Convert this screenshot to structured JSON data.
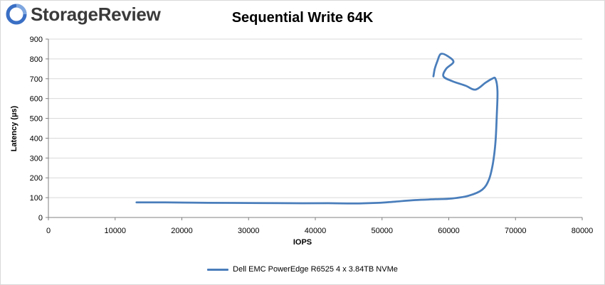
{
  "brand": {
    "name": "StorageReview"
  },
  "colors": {
    "series": "#4a7ebb",
    "grid": "#d9d9d9",
    "axis": "#808080",
    "logo_icon": "#3a6fc4"
  },
  "chart_data": {
    "type": "line",
    "title": "Sequential Write 64K",
    "xlabel": "IOPS",
    "ylabel": "Latency (µs)",
    "xlim": [
      0,
      80000
    ],
    "ylim": [
      0,
      900
    ],
    "x_ticks": [
      "0",
      "10000",
      "20000",
      "30000",
      "40000",
      "50000",
      "60000",
      "70000",
      "80000"
    ],
    "y_ticks": [
      "0",
      "100",
      "200",
      "300",
      "400",
      "500",
      "600",
      "700",
      "800",
      "900"
    ],
    "grid": "horizontal",
    "legend_position": "bottom",
    "series": [
      {
        "name": "Dell EMC PowerEdge R6525 4 x 3.84TB NVMe",
        "points": [
          [
            13200,
            76
          ],
          [
            17500,
            76
          ],
          [
            24000,
            74
          ],
          [
            30000,
            73
          ],
          [
            36000,
            72
          ],
          [
            42000,
            72
          ],
          [
            46000,
            71
          ],
          [
            49500,
            74
          ],
          [
            52000,
            80
          ],
          [
            55000,
            88
          ],
          [
            58000,
            92
          ],
          [
            60500,
            96
          ],
          [
            63000,
            110
          ],
          [
            65000,
            140
          ],
          [
            66000,
            190
          ],
          [
            66600,
            270
          ],
          [
            67000,
            380
          ],
          [
            67200,
            520
          ],
          [
            67300,
            640
          ],
          [
            67000,
            700
          ],
          [
            66500,
            700
          ],
          [
            65500,
            680
          ],
          [
            64000,
            645
          ],
          [
            62500,
            665
          ],
          [
            60500,
            688
          ],
          [
            59200,
            712
          ],
          [
            59600,
            750
          ],
          [
            60700,
            785
          ],
          [
            59800,
            815
          ],
          [
            58800,
            825
          ],
          [
            58300,
            790
          ],
          [
            57900,
            750
          ],
          [
            57700,
            712
          ]
        ]
      }
    ]
  }
}
